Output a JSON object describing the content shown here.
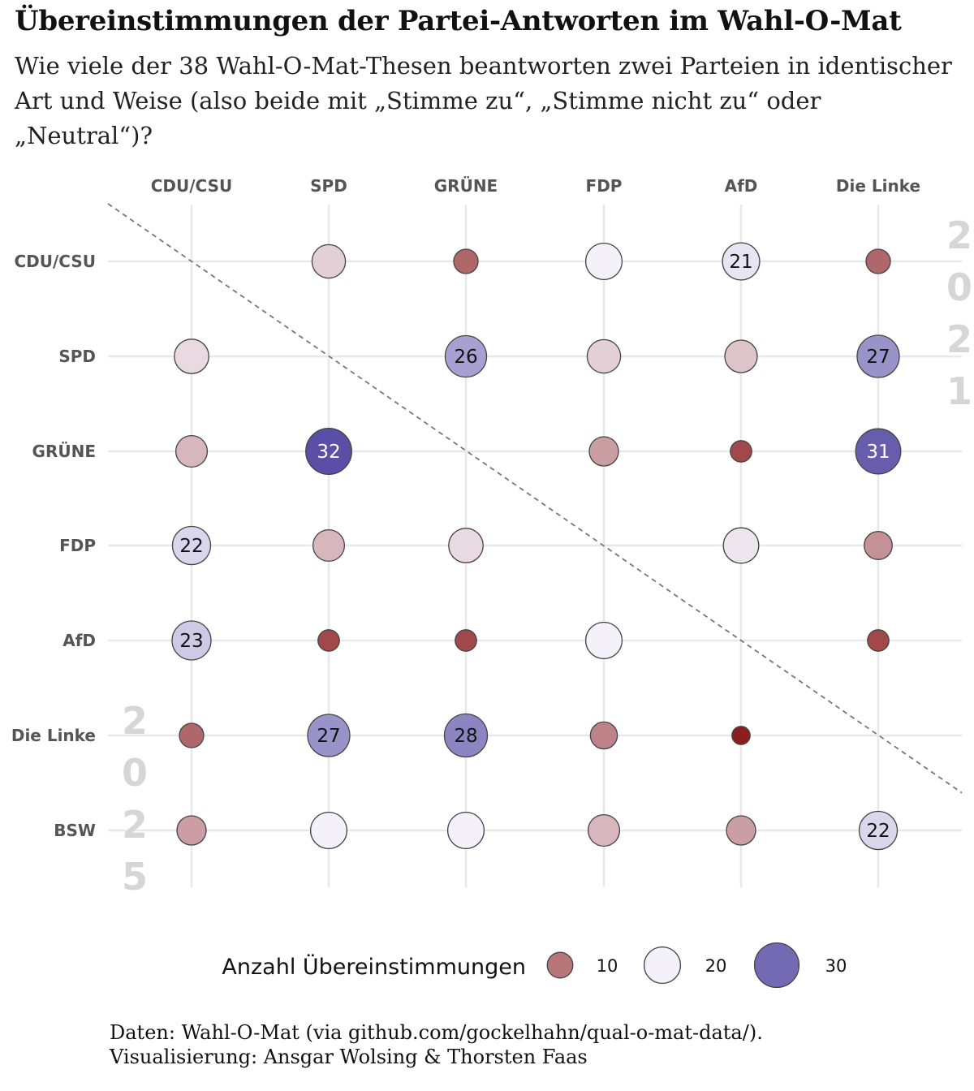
{
  "title": "Übereinstimmungen der Partei-Antworten im Wahl-O-Mat",
  "subtitle": "Wie viele der 38 Wahl-O-Mat-Thesen beantworten zwei Parteien in identischer Art und Weise (also beide mit „Stimme zu“, „Stimme nicht zu“ oder „Neutral“)?",
  "caption": {
    "line1": "Daten: Wahl-O-Mat (via github.com/gockelhahn/qual-o-mat-data/).",
    "line2": "Visualisierung: Ansgar Wolsing & Thorsten Faas"
  },
  "colors": {
    "low": "#8b1e1e",
    "mid": "#f4f1fa",
    "high": "#5a4fa6",
    "grid": "#e8e8e8",
    "diagonal": "#777777",
    "outline": "#444444",
    "year_text": "#d6d6d6"
  },
  "chart_data": {
    "type": "bubble-matrix",
    "columns": [
      "CDU/CSU",
      "SPD",
      "GRÜNE",
      "FDP",
      "AfD",
      "Die Linke"
    ],
    "rows": [
      "CDU/CSU",
      "SPD",
      "GRÜNE",
      "FDP",
      "AfD",
      "Die Linke",
      "BSW"
    ],
    "year_upper": "2021",
    "year_lower": "2025",
    "label_threshold": 21,
    "cells": [
      {
        "row": "CDU/CSU",
        "col": "SPD",
        "value": 17
      },
      {
        "row": "CDU/CSU",
        "col": "GRÜNE",
        "value": 9
      },
      {
        "row": "CDU/CSU",
        "col": "FDP",
        "value": 20
      },
      {
        "row": "CDU/CSU",
        "col": "AfD",
        "value": 21
      },
      {
        "row": "CDU/CSU",
        "col": "Die Linke",
        "value": 9
      },
      {
        "row": "SPD",
        "col": "CDU/CSU",
        "value": 18
      },
      {
        "row": "SPD",
        "col": "GRÜNE",
        "value": 26
      },
      {
        "row": "SPD",
        "col": "FDP",
        "value": 17
      },
      {
        "row": "SPD",
        "col": "AfD",
        "value": 16
      },
      {
        "row": "SPD",
        "col": "Die Linke",
        "value": 27
      },
      {
        "row": "GRÜNE",
        "col": "CDU/CSU",
        "value": 15
      },
      {
        "row": "GRÜNE",
        "col": "SPD",
        "value": 32
      },
      {
        "row": "GRÜNE",
        "col": "FDP",
        "value": 13
      },
      {
        "row": "GRÜNE",
        "col": "AfD",
        "value": 7
      },
      {
        "row": "GRÜNE",
        "col": "Die Linke",
        "value": 31
      },
      {
        "row": "FDP",
        "col": "CDU/CSU",
        "value": 22
      },
      {
        "row": "FDP",
        "col": "SPD",
        "value": 15
      },
      {
        "row": "FDP",
        "col": "GRÜNE",
        "value": 18
      },
      {
        "row": "FDP",
        "col": "AfD",
        "value": 19
      },
      {
        "row": "FDP",
        "col": "Die Linke",
        "value": 12
      },
      {
        "row": "AfD",
        "col": "CDU/CSU",
        "value": 23
      },
      {
        "row": "AfD",
        "col": "SPD",
        "value": 7
      },
      {
        "row": "AfD",
        "col": "GRÜNE",
        "value": 7
      },
      {
        "row": "AfD",
        "col": "FDP",
        "value": 20
      },
      {
        "row": "AfD",
        "col": "Die Linke",
        "value": 7
      },
      {
        "row": "Die Linke",
        "col": "CDU/CSU",
        "value": 9
      },
      {
        "row": "Die Linke",
        "col": "SPD",
        "value": 27
      },
      {
        "row": "Die Linke",
        "col": "GRÜNE",
        "value": 28
      },
      {
        "row": "Die Linke",
        "col": "FDP",
        "value": 11
      },
      {
        "row": "Die Linke",
        "col": "AfD",
        "value": 5
      },
      {
        "row": "BSW",
        "col": "CDU/CSU",
        "value": 13
      },
      {
        "row": "BSW",
        "col": "SPD",
        "value": 20
      },
      {
        "row": "BSW",
        "col": "GRÜNE",
        "value": 20
      },
      {
        "row": "BSW",
        "col": "FDP",
        "value": 15
      },
      {
        "row": "BSW",
        "col": "AfD",
        "value": 13
      },
      {
        "row": "BSW",
        "col": "Die Linke",
        "value": 22
      }
    ],
    "legend": {
      "title": "Anzahl Übereinstimmungen",
      "breaks": [
        10,
        20,
        30
      ],
      "labels": [
        "10",
        "20",
        "30"
      ]
    }
  }
}
